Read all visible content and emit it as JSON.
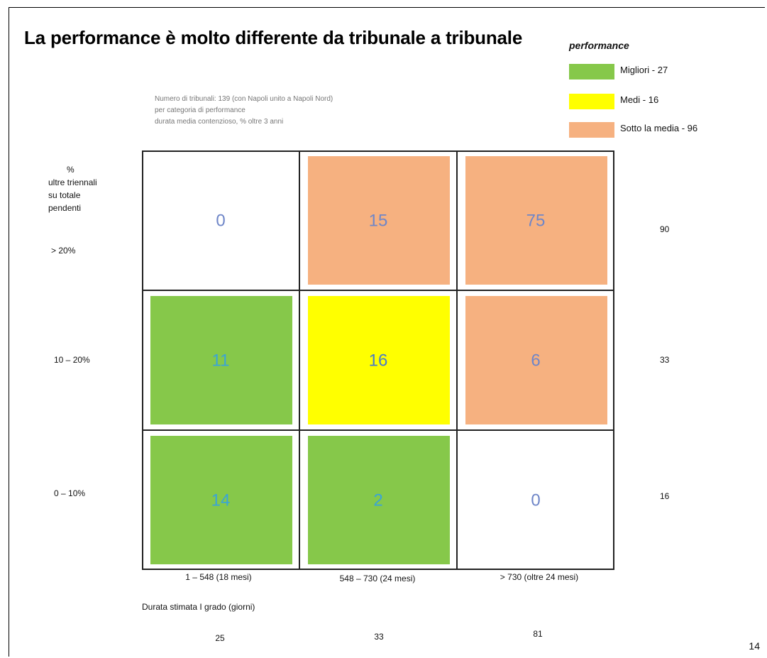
{
  "title": "La performance è molto differente da tribunale a tribunale",
  "subtitle": [
    "Numero di tribunali: 139 (con Napoli unito a Napoli Nord)",
    "per categoria di performance",
    "durata media contenzioso, % oltre 3 anni"
  ],
  "legend": {
    "title": "performance",
    "items": [
      {
        "label": "Migliori - 27",
        "color": "#86c84a"
      },
      {
        "label": "Medi - 16",
        "color": "#ffff00"
      },
      {
        "label": "Sotto la media - 96",
        "color": "#f6b180"
      }
    ]
  },
  "y_axis_title": {
    "pct": "%",
    "text": [
      "ultre triennali",
      "su totale",
      "pendenti"
    ]
  },
  "row_labels": [
    "> 20%",
    "10 – 20%",
    "0 – 10%"
  ],
  "row_totals": [
    "90",
    "33",
    "16"
  ],
  "col_labels": [
    "1 – 548 (18 mesi)",
    "548 – 730 (24 mesi)",
    "> 730 (oltre 24 mesi)"
  ],
  "col_totals": [
    "25",
    "33",
    "81"
  ],
  "x_axis_title": "Durata stimata I grado (giorni)",
  "page_number": "14",
  "chart_data": {
    "type": "heatmap",
    "title": "La performance è molto differente da tribunale a tribunale",
    "xlabel": "Durata stimata I grado (giorni)",
    "ylabel": "% ultre triennali su totale pendenti",
    "x_categories": [
      "1 – 548 (18 mesi)",
      "548 – 730 (24 mesi)",
      "> 730 (oltre 24 mesi)"
    ],
    "y_categories": [
      "> 20%",
      "10 – 20%",
      "0 – 10%"
    ],
    "values": [
      [
        0,
        15,
        75
      ],
      [
        11,
        16,
        6
      ],
      [
        14,
        2,
        0
      ]
    ],
    "categories_map": [
      [
        "none",
        "sotto",
        "sotto"
      ],
      [
        "migliori",
        "medi",
        "sotto"
      ],
      [
        "migliori",
        "migliori",
        "none"
      ]
    ],
    "colors": {
      "migliori": "#86c84a",
      "medi": "#ffff00",
      "sotto": "#f6b180",
      "none": "#ffffff"
    },
    "text_colors": {
      "migliori": "#3aa4d8",
      "medi": "#4a7bc8",
      "sotto": "#6f86c8",
      "none": "#6f86c8"
    }
  }
}
